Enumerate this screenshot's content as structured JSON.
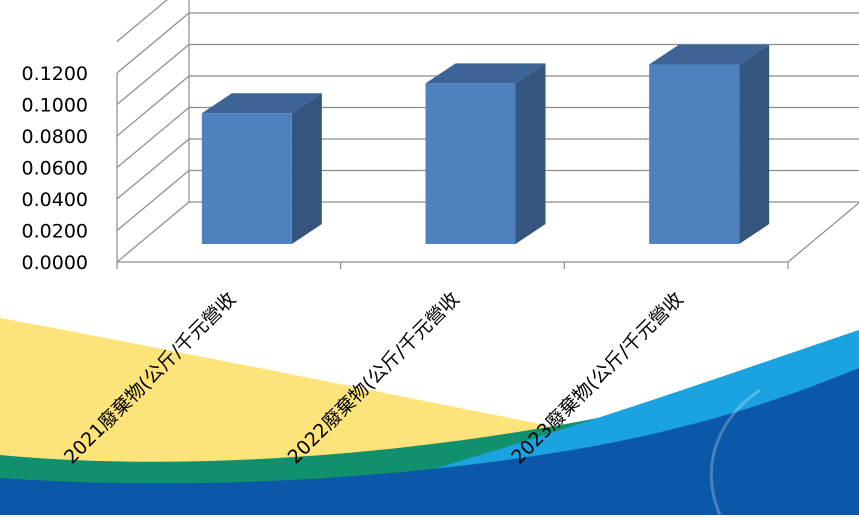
{
  "chart_data": {
    "type": "bar",
    "style": "3d-column",
    "categories": [
      "2021廢棄物(公斤/千元營收",
      "2022廢棄物(公斤/千元營收",
      "2023廢棄物(公斤/千元營收"
    ],
    "values": [
      0.083,
      0.102,
      0.114
    ],
    "y_tick_labels": [
      "0.0000",
      "0.0200",
      "0.0400",
      "0.0600",
      "0.0800",
      "0.1000",
      "0.1200"
    ],
    "ylim": [
      0,
      0.14
    ],
    "grid": true,
    "legend": "none",
    "colors": {
      "bar_front": "#4F81BD",
      "bar_side": "#35557F",
      "bar_top": "#3D6496",
      "gridline": "#8C8C8C",
      "axis_text": "#000000",
      "band_yellow": "#FCE47A",
      "band_green": "#11906E",
      "band_blue": "#0B57A8",
      "band_cyan": "#1AA3E0"
    }
  }
}
